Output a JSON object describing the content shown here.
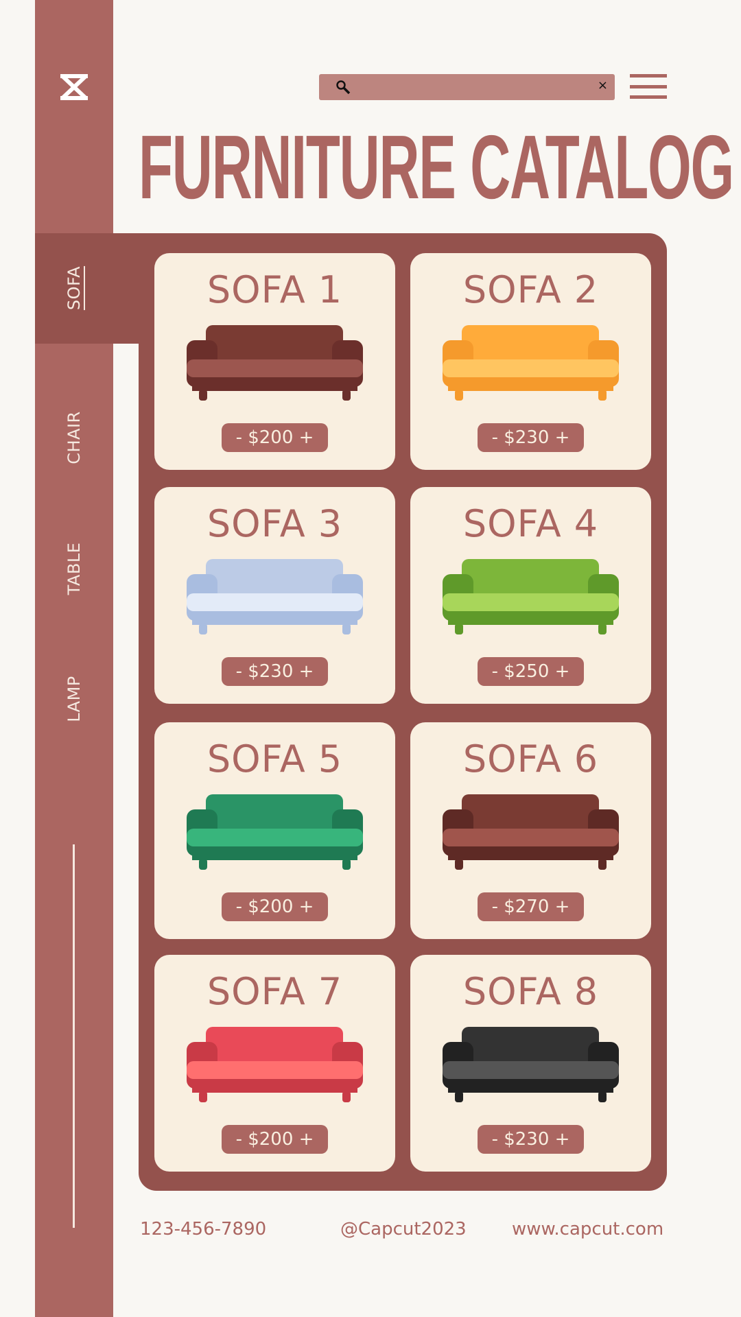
{
  "header": {
    "search_value": "",
    "clear_label": "×",
    "title": "FURNITURE CATALOG"
  },
  "sidebar": {
    "items": [
      {
        "label": "SOFA",
        "active": true
      },
      {
        "label": "CHAIR"
      },
      {
        "label": "TABLE"
      },
      {
        "label": "LAMP"
      }
    ]
  },
  "products": [
    {
      "name": "SOFA 1",
      "price": "- $200 +",
      "colors": [
        "#7a3b33",
        "#9c564f",
        "#6b2f2b"
      ]
    },
    {
      "name": "SOFA 2",
      "price": "- $230 +",
      "colors": [
        "#ffab3a",
        "#ffc560",
        "#f59a2c"
      ]
    },
    {
      "name": "SOFA 3",
      "price": "- $230 +",
      "colors": [
        "#bccbe6",
        "#e3ebf8",
        "#a9bde0"
      ]
    },
    {
      "name": "SOFA 4",
      "price": "- $250 +",
      "colors": [
        "#7db63a",
        "#a8d65a",
        "#5f9a2a"
      ]
    },
    {
      "name": "SOFA 5",
      "price": "- $200 +",
      "colors": [
        "#2a9466",
        "#38b57c",
        "#1f7a53"
      ]
    },
    {
      "name": "SOFA 6",
      "price": "- $270 +",
      "colors": [
        "#7a3b33",
        "#a0554c",
        "#5e2a25"
      ]
    },
    {
      "name": "SOFA 7",
      "price": "- $200 +",
      "colors": [
        "#e94a58",
        "#ff6f6f",
        "#c93a46"
      ]
    },
    {
      "name": "SOFA 8",
      "price": "- $230 +",
      "colors": [
        "#333333",
        "#555555",
        "#222222"
      ]
    }
  ],
  "footer": {
    "phone": "123-456-7890",
    "handle": "@Capcut2023",
    "website": "www.capcut.com"
  },
  "colors": {
    "background": "#f9f7f3",
    "sidebar": "#ab6661",
    "panel": "#94524d",
    "card": "#f9efe0",
    "accent": "#ab6661"
  },
  "icons": {
    "logo": "capcut-logo-icon",
    "search": "search-icon",
    "menu": "hamburger-menu-icon"
  }
}
